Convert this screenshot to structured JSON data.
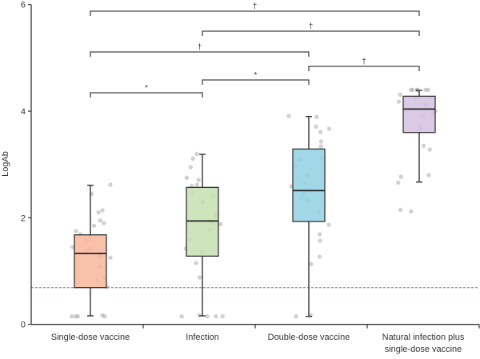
{
  "chart_data": {
    "type": "box",
    "title": "",
    "xlabel": "",
    "ylabel": "LogAb",
    "ylim": [
      0,
      6
    ],
    "yticks": [
      "0",
      "2",
      "4",
      "6"
    ],
    "reference_line": {
      "y": 0.69,
      "style": "dashed",
      "color": "#5a7a8a"
    },
    "categories": [
      {
        "label_lines": [
          "Single-dose vaccine"
        ],
        "color": "#f8b59b",
        "box": {
          "min": 0.16,
          "q1": 0.69,
          "median": 1.33,
          "q3": 1.68,
          "max": 2.61
        },
        "points": [
          2.62,
          2.45,
          2.14,
          2.1,
          1.95,
          1.9,
          1.85,
          1.75,
          1.69,
          1.64,
          1.56,
          1.45,
          1.42,
          1.39,
          1.28,
          1.25,
          1.08,
          0.88,
          0.82,
          0.7,
          0.17,
          0.15,
          0.15,
          0.15,
          0.15
        ]
      },
      {
        "label_lines": [
          "Infection"
        ],
        "color": "#c6dfb0",
        "box": {
          "min": 0.16,
          "q1": 1.28,
          "median": 1.94,
          "q3": 2.57,
          "max": 3.19
        },
        "points": [
          3.2,
          3.11,
          2.95,
          2.75,
          2.71,
          2.62,
          2.6,
          2.47,
          2.41,
          2.29,
          2.06,
          2.03,
          1.93,
          1.88,
          1.78,
          1.6,
          1.42,
          1.36,
          1.15,
          0.88,
          0.17,
          0.15,
          0.15,
          0.15,
          0.15
        ]
      },
      {
        "label_lines": [
          "Double-dose vaccine"
        ],
        "color": "#92d0e3",
        "box": {
          "min": 0.15,
          "q1": 1.93,
          "median": 2.51,
          "q3": 3.29,
          "max": 3.9
        },
        "points": [
          3.91,
          3.89,
          3.71,
          3.67,
          3.61,
          3.43,
          3.34,
          3.13,
          3.08,
          2.98,
          2.8,
          2.65,
          2.59,
          2.45,
          2.38,
          2.34,
          2.12,
          1.87,
          1.69,
          1.57,
          1.27,
          1.13,
          0.17,
          0.15
        ]
      },
      {
        "label_lines": [
          "Natural infection plus",
          "single-dose vaccine"
        ],
        "color": "#d4c1e2",
        "box": {
          "min": 2.67,
          "q1": 3.6,
          "median": 4.04,
          "q3": 4.28,
          "max": 4.39
        },
        "points": [
          4.4,
          4.4,
          4.4,
          4.4,
          4.4,
          4.4,
          4.31,
          4.25,
          4.18,
          4.12,
          4.0,
          3.95,
          3.92,
          3.67,
          3.35,
          3.28,
          2.8,
          2.77,
          2.66,
          2.15,
          2.12
        ]
      }
    ],
    "comparisons": [
      {
        "from": 0,
        "to": 3,
        "label": "†"
      },
      {
        "from": 1,
        "to": 3,
        "label": "†"
      },
      {
        "from": 0,
        "to": 2,
        "label": "†"
      },
      {
        "from": 2,
        "to": 3,
        "label": "†"
      },
      {
        "from": 1,
        "to": 2,
        "label": "*"
      },
      {
        "from": 0,
        "to": 1,
        "label": "*"
      }
    ]
  }
}
